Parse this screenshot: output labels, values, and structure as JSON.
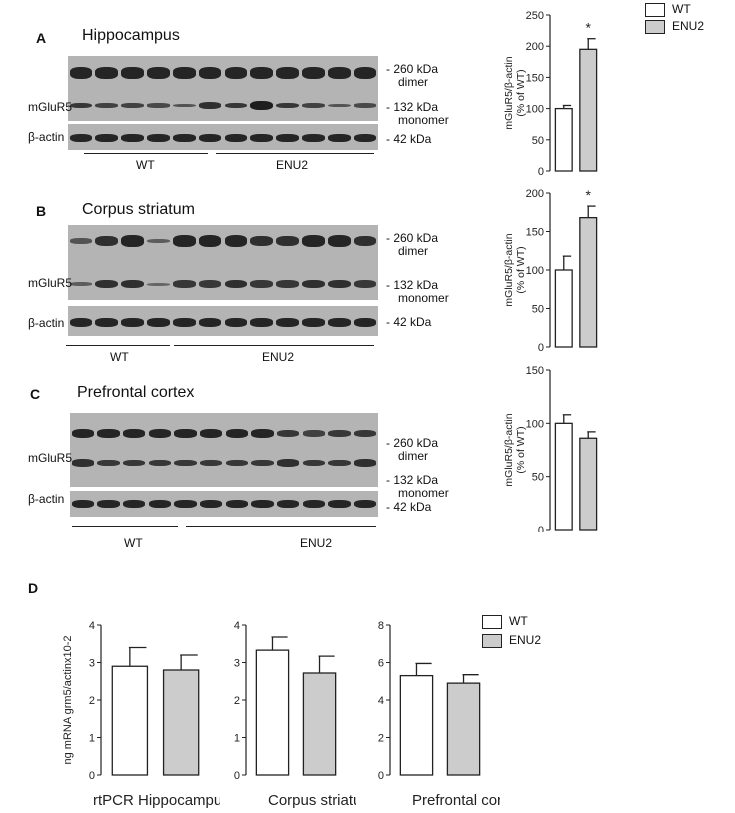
{
  "colors": {
    "wt": "#ffffff",
    "enu2": "#cccccc",
    "band": "#1e1e1e",
    "membrane": "#b4b4b4"
  },
  "legend": {
    "wt": "WT",
    "enu2": "ENU2"
  },
  "markers": {
    "kda260": "- 260 kDa",
    "dimer": "dimer",
    "kda132": "- 132 kDa",
    "monomer": "monomer",
    "kda42": "- 42 kDa"
  },
  "row_labels": {
    "mglur5": "mGluR5",
    "actin": "β-actin"
  },
  "groups": {
    "wt": "WT",
    "enu2": "ENU2"
  },
  "panels": {
    "A": {
      "letter": "A",
      "title": "Hippocampus"
    },
    "B": {
      "letter": "B",
      "title": "Corpus striatum"
    },
    "C": {
      "letter": "C",
      "title": "Prefrontal cortex"
    },
    "D": {
      "letter": "D"
    }
  },
  "chart_data": [
    {
      "panel": "A",
      "type": "bar",
      "categories": [
        "WT",
        "ENU2"
      ],
      "values": [
        100,
        195
      ],
      "errors": [
        5,
        17
      ],
      "ylim": [
        0,
        250
      ],
      "yticks": [
        0,
        50,
        100,
        150,
        200,
        250
      ],
      "ylabel": "mGluR5/β-actin",
      "ylabel2": "(% of WT)",
      "significance": [
        "",
        "*"
      ]
    },
    {
      "panel": "B",
      "type": "bar",
      "categories": [
        "WT",
        "ENU2"
      ],
      "values": [
        100,
        168
      ],
      "errors": [
        18,
        15
      ],
      "ylim": [
        0,
        200
      ],
      "yticks": [
        0,
        50,
        100,
        150,
        200
      ],
      "ylabel": "mGluR5/β-actin",
      "ylabel2": "(% of WT)",
      "significance": [
        "",
        "*"
      ]
    },
    {
      "panel": "C",
      "type": "bar",
      "categories": [
        "WT",
        "ENU2"
      ],
      "values": [
        100,
        86
      ],
      "errors": [
        8,
        6
      ],
      "ylim": [
        0,
        150
      ],
      "yticks": [
        0,
        50,
        100,
        150
      ],
      "ylabel": "mGluR5/β-actin",
      "ylabel2": "(% of WT)",
      "significance": [
        "",
        ""
      ]
    },
    {
      "panel": "D1",
      "type": "bar",
      "categories": [
        "WT",
        "ENU2"
      ],
      "values": [
        2.9,
        2.8
      ],
      "errors": [
        0.5,
        0.4
      ],
      "ylim": [
        0,
        4
      ],
      "yticks": [
        0,
        1,
        2,
        3,
        4
      ],
      "ylabel": "ng mRNA grm5/actinx10-2",
      "xlabel": "rtPCR Hippocampus"
    },
    {
      "panel": "D2",
      "type": "bar",
      "categories": [
        "WT",
        "ENU2"
      ],
      "values": [
        3.33,
        2.72
      ],
      "errors": [
        0.35,
        0.45
      ],
      "ylim": [
        0,
        4
      ],
      "yticks": [
        0,
        1,
        2,
        3,
        4
      ],
      "ylabel": "",
      "xlabel": "Corpus striatum"
    },
    {
      "panel": "D3",
      "type": "bar",
      "categories": [
        "WT",
        "ENU2"
      ],
      "values": [
        5.3,
        4.9
      ],
      "errors": [
        0.65,
        0.45
      ],
      "ylim": [
        0,
        8
      ],
      "yticks": [
        0,
        2,
        4,
        6,
        8
      ],
      "ylabel": "",
      "xlabel": "Prefrontal cortex"
    }
  ]
}
